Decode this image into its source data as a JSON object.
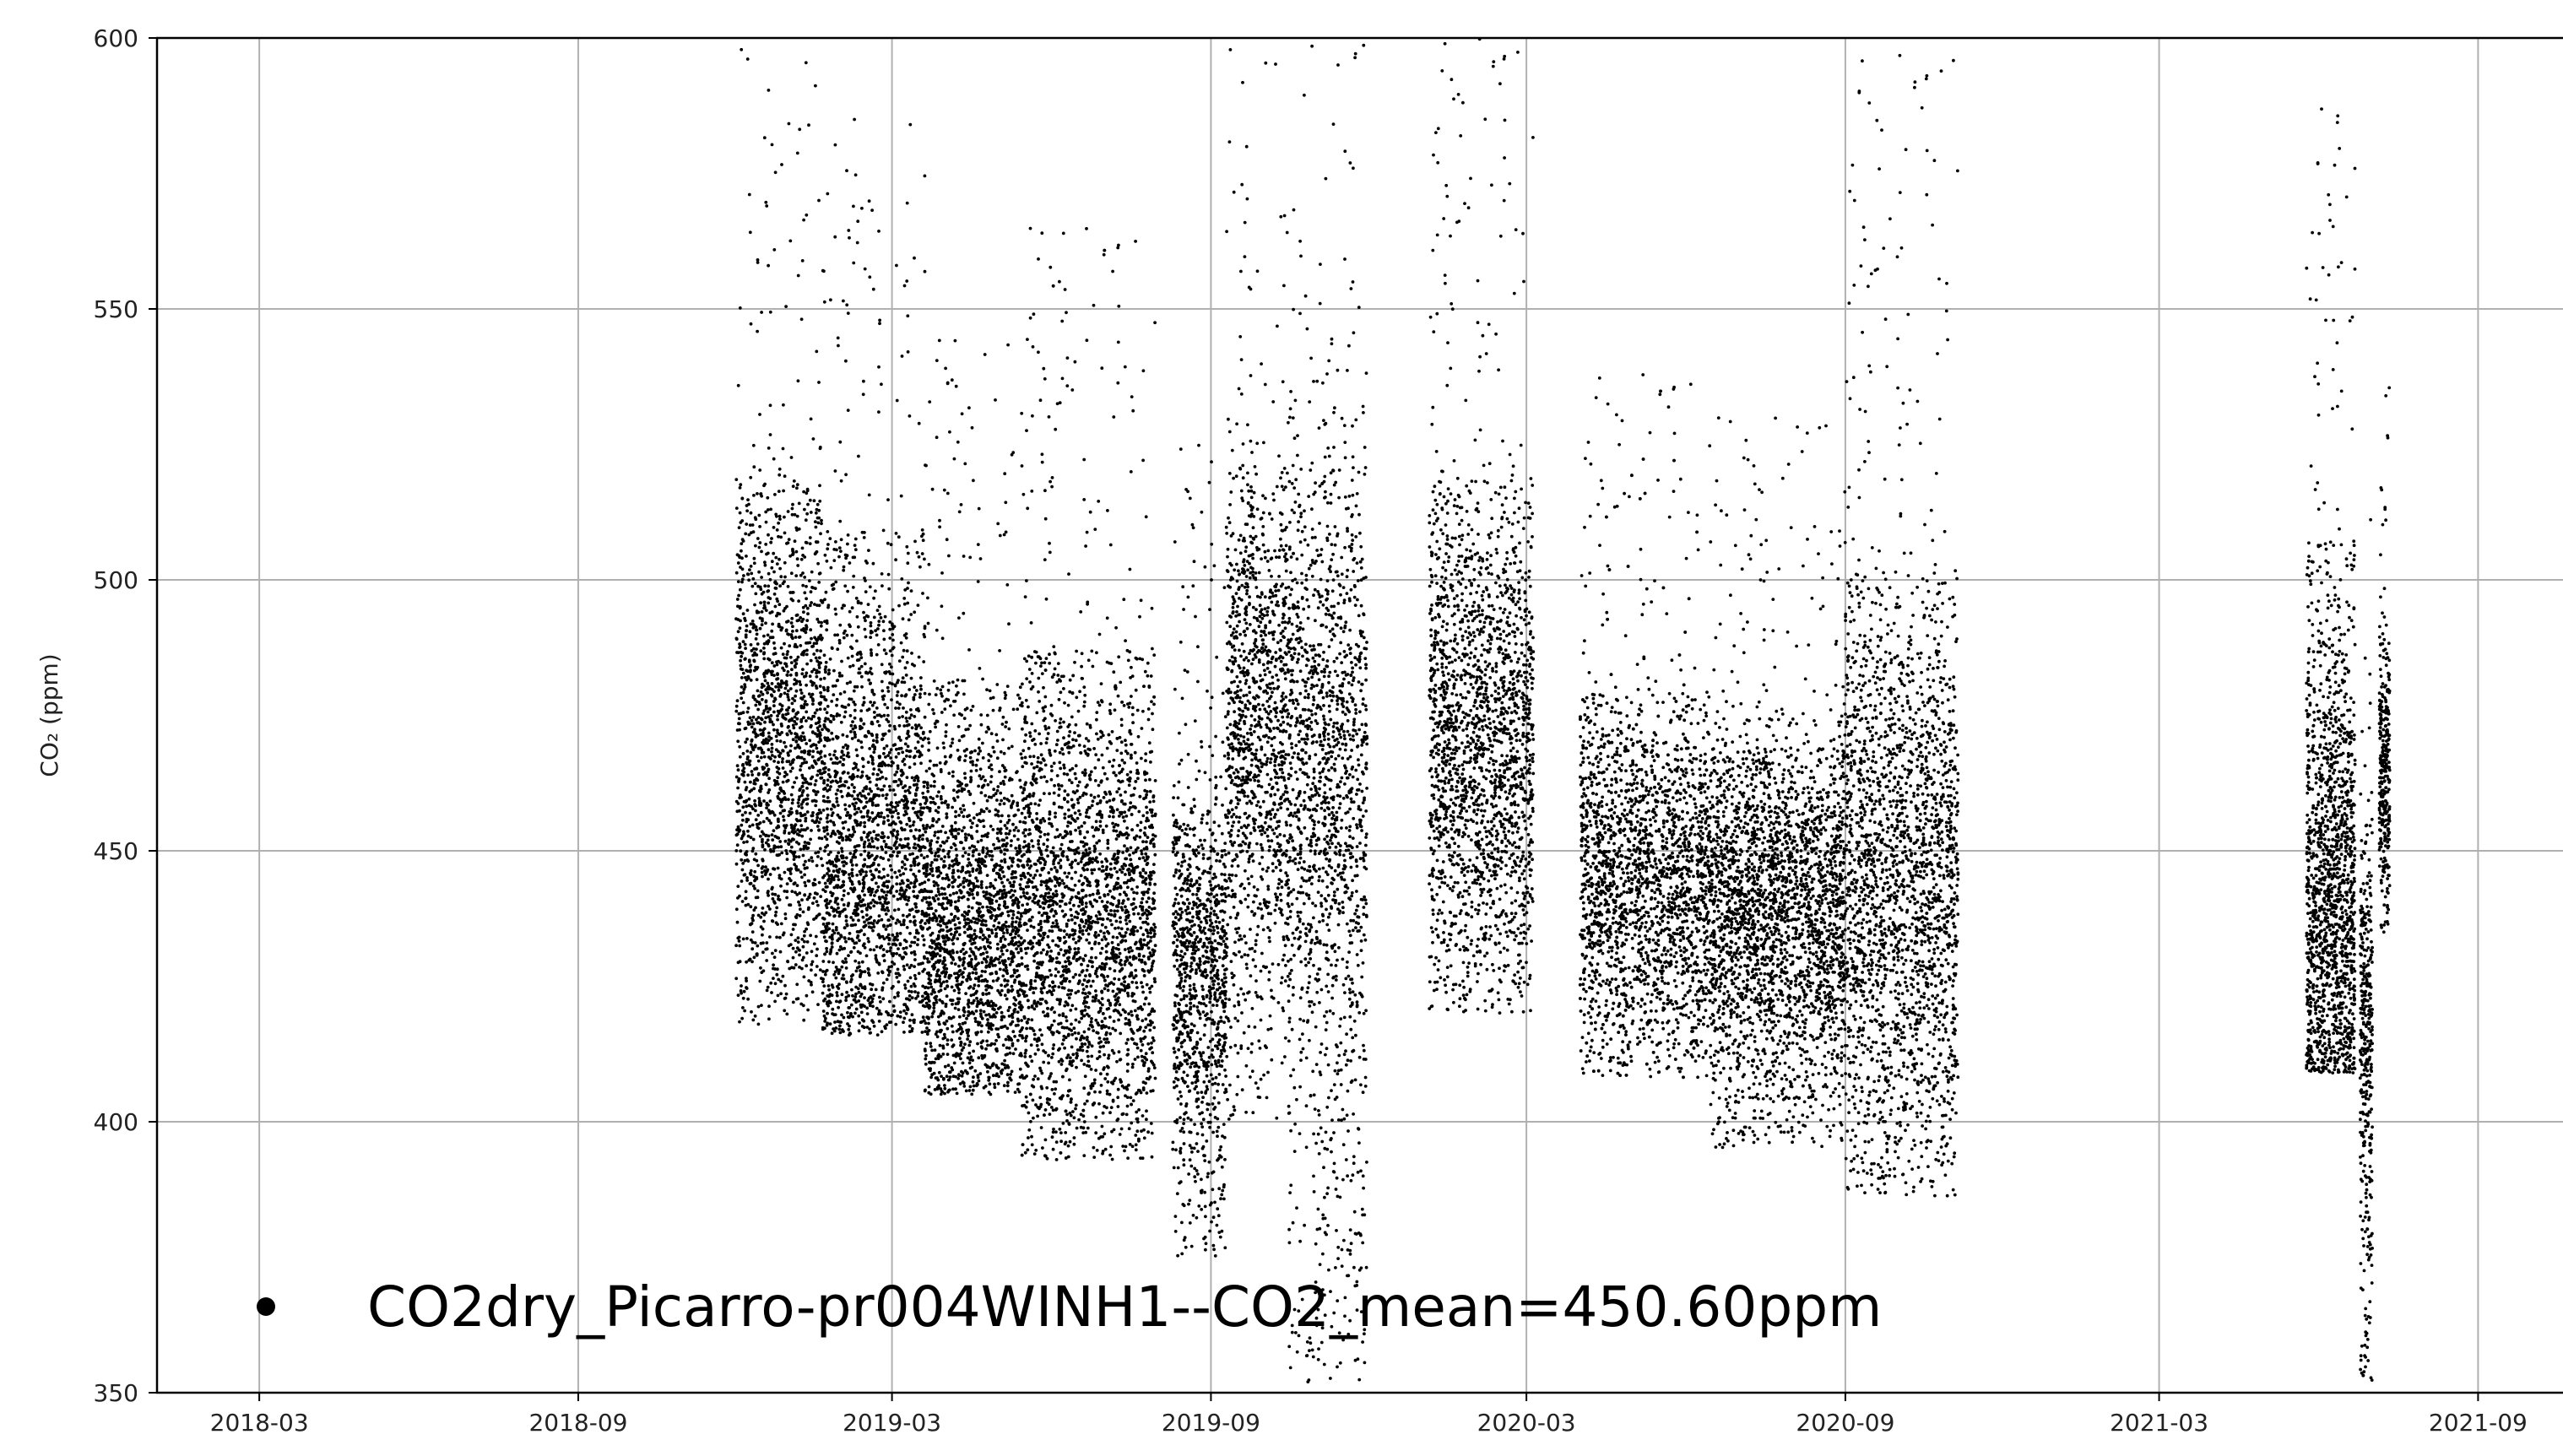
{
  "chart_data": {
    "type": "scatter",
    "title": "",
    "xlabel": "",
    "ylabel": "CO₂ (ppm)",
    "xlim": [
      "2018-01-01",
      "2021-10-20"
    ],
    "ylim": [
      350,
      600
    ],
    "x_ticks": [
      "2018-03",
      "2018-09",
      "2019-03",
      "2019-09",
      "2020-03",
      "2020-09",
      "2021-03",
      "2021-09"
    ],
    "y_ticks": [
      350,
      400,
      450,
      500,
      550,
      600
    ],
    "grid": true,
    "legend": {
      "placement": "lower-left",
      "entries": [
        "CO2dry_Picarro-pr004WINH1--CO2_mean=450.60ppm"
      ]
    },
    "series": [
      {
        "name": "CO2dry_Picarro-pr004WINH1--CO2_mean=450.60ppm",
        "marker": "dot",
        "color": "#000000",
        "segments": [
          {
            "start": "2018-12-01",
            "end": "2019-01-20",
            "min": 418,
            "max": 598,
            "center": 470
          },
          {
            "start": "2019-01-20",
            "end": "2019-03-20",
            "min": 416,
            "max": 586,
            "center": 450
          },
          {
            "start": "2019-03-20",
            "end": "2019-05-15",
            "min": 405,
            "max": 545,
            "center": 435
          },
          {
            "start": "2019-05-15",
            "end": "2019-07-31",
            "min": 393,
            "max": 565,
            "center": 438
          },
          {
            "start": "2019-08-10",
            "end": "2019-09-10",
            "min": 375,
            "max": 525,
            "center": 430
          },
          {
            "start": "2019-09-10",
            "end": "2019-10-15",
            "min": 400,
            "max": 598,
            "center": 475
          },
          {
            "start": "2019-10-15",
            "end": "2019-11-30",
            "min": 352,
            "max": 600,
            "center": 470
          },
          {
            "start": "2020-01-05",
            "end": "2020-03-05",
            "min": 420,
            "max": 600,
            "center": 470
          },
          {
            "start": "2020-04-01",
            "end": "2020-06-15",
            "min": 408,
            "max": 538,
            "center": 445
          },
          {
            "start": "2020-06-15",
            "end": "2020-09-01",
            "min": 395,
            "max": 530,
            "center": 440
          },
          {
            "start": "2020-09-01",
            "end": "2020-11-05",
            "min": 386,
            "max": 597,
            "center": 445
          }
        ],
        "extra_segments_2021": [
          {
            "start": "2021-05-25",
            "end": "2021-06-22",
            "min": 409,
            "max": 588,
            "center": 440
          },
          {
            "start": "2021-06-25",
            "end": "2021-07-02",
            "min": 350,
            "max": 513,
            "center": 420
          },
          {
            "start": "2021-07-06",
            "end": "2021-07-12",
            "min": 435,
            "max": 536,
            "center": 465
          }
        ]
      }
    ]
  }
}
